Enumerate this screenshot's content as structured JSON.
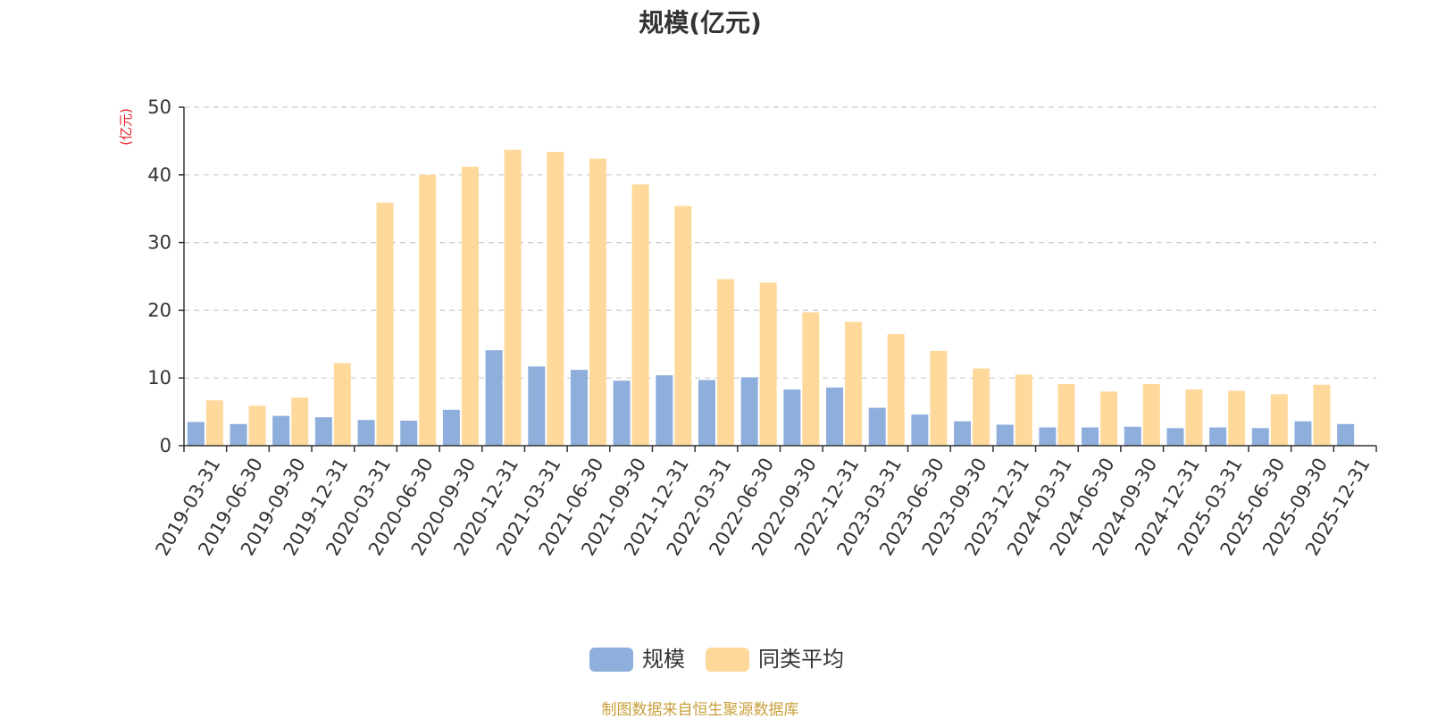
{
  "chart_data": {
    "type": "bar",
    "title": "规模(亿元)",
    "ylabel": "(亿元)",
    "ylim": [
      0,
      50
    ],
    "yticks": [
      0,
      10,
      20,
      30,
      40,
      50
    ],
    "grid": "horizontal-dashed",
    "legend_position": "bottom-center",
    "categories": [
      "2019-03-31",
      "2019-06-30",
      "2019-09-30",
      "2019-12-31",
      "2020-03-31",
      "2020-06-30",
      "2020-09-30",
      "2020-12-31",
      "2021-03-31",
      "2021-06-30",
      "2021-09-30",
      "2021-12-31",
      "2022-03-31",
      "2022-06-30",
      "2022-09-30",
      "2022-12-31",
      "2023-03-31",
      "2023-06-30",
      "2023-09-30",
      "2023-12-31",
      "2024-03-31",
      "2024-06-30",
      "2024-09-30",
      "2024-12-31",
      "2025-03-31",
      "2025-06-30",
      "2025-09-30",
      "2025-12-31"
    ],
    "series": [
      {
        "name": "规模",
        "color": "#8eaedb",
        "values": [
          3.5,
          3.2,
          4.4,
          4.2,
          3.8,
          3.7,
          5.3,
          14.1,
          11.7,
          11.2,
          9.6,
          10.4,
          9.7,
          10.1,
          8.3,
          8.6,
          5.6,
          4.6,
          3.6,
          3.1,
          2.7,
          2.7,
          2.8,
          2.6,
          2.7,
          2.6,
          3.6,
          3.2
        ]
      },
      {
        "name": "同类平均",
        "color": "#ffd99b",
        "values": [
          6.7,
          5.9,
          7.1,
          12.2,
          35.9,
          40.0,
          41.2,
          43.7,
          43.4,
          42.4,
          38.6,
          35.4,
          24.6,
          24.1,
          19.7,
          18.3,
          16.5,
          14.0,
          11.4,
          10.5,
          9.1,
          8.0,
          9.1,
          8.3,
          8.1,
          7.6,
          9.0,
          null
        ]
      }
    ],
    "source": "制图数据来自恒生聚源数据库"
  }
}
